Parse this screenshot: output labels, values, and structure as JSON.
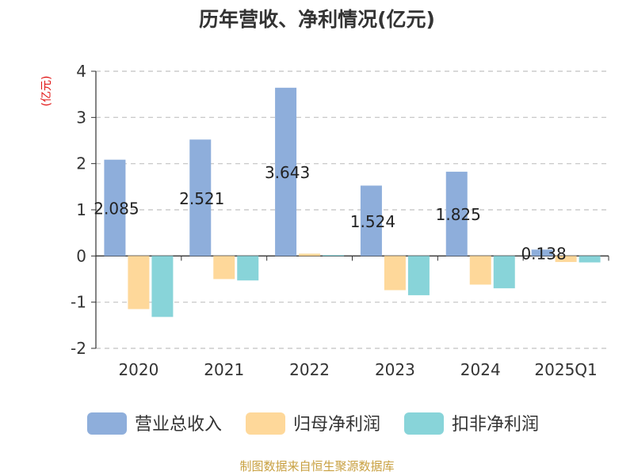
{
  "chart_data": {
    "type": "bar",
    "title": "历年营收、净利情况(亿元)",
    "ylabel": "(亿元)",
    "xlabel": "",
    "ylim": [
      -2,
      4
    ],
    "yticks": [
      -2,
      -1,
      0,
      1,
      2,
      3,
      4
    ],
    "grid": true,
    "legend_position": "bottom",
    "categories": [
      "2020",
      "2021",
      "2022",
      "2023",
      "2024",
      "2025Q1"
    ],
    "series": [
      {
        "name": "营业总收入",
        "color": "#8eaedb",
        "values": [
          2.085,
          2.521,
          3.643,
          1.524,
          1.825,
          0.138
        ],
        "labels": [
          "2.085",
          "2.521",
          "3.643",
          "1.524",
          "1.825",
          "0.138"
        ]
      },
      {
        "name": "归母净利润",
        "color": "#fed89a",
        "values": [
          -1.15,
          -0.5,
          0.05,
          -0.74,
          -0.62,
          -0.13
        ]
      },
      {
        "name": "扣非净利润",
        "color": "#88d4d9",
        "values": [
          -1.32,
          -0.53,
          0.02,
          -0.85,
          -0.7,
          -0.14
        ]
      }
    ],
    "source_note": "制图数据来自恒生聚源数据库",
    "colors": {
      "title": "#333333",
      "axis": "#333333",
      "grid": "#cccccc",
      "ylabel": "#e01010",
      "source": "#c8a040"
    }
  }
}
